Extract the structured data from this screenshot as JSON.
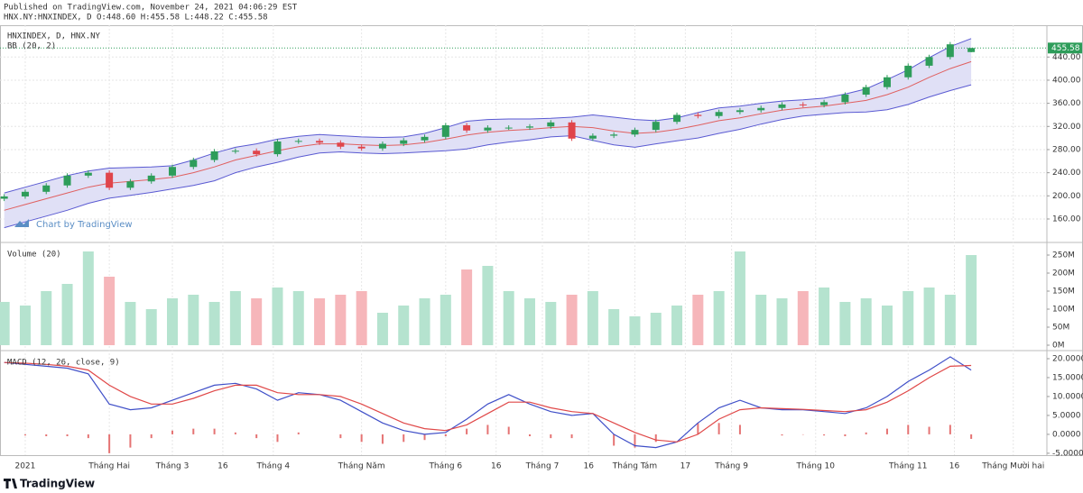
{
  "header": {
    "published": "Published on TradingView.com, November 24, 2021 04:06:29 EST",
    "symbol_line": "HNX.NY:HNXINDEX, D O:448.60 H:455.58 L:448.22 C:455.58"
  },
  "watermark": "Chart by TradingView",
  "footer": {
    "brand": "TradingView"
  },
  "chart_data": [
    {
      "type": "candlestick",
      "title": "HNXINDEX, D, HNX.NY",
      "indicator": "BB (20, 2)",
      "x": [
        0,
        5,
        10,
        15,
        20,
        25,
        30,
        35,
        40,
        45,
        50,
        55,
        60,
        65,
        70,
        75,
        80,
        85,
        90,
        95,
        100,
        105,
        110,
        115,
        120,
        125,
        130,
        135,
        140,
        145,
        150,
        155,
        160,
        165,
        170,
        175,
        180,
        185,
        190,
        195,
        200,
        205,
        210,
        215,
        220,
        225,
        230
      ],
      "xlim": [
        -1,
        248
      ],
      "xticks": [
        {
          "value": 5,
          "label": "2021"
        },
        {
          "value": 25,
          "label": "Tháng Hai"
        },
        {
          "value": 40,
          "label": "Tháng 3"
        },
        {
          "value": 52,
          "label": "16"
        },
        {
          "value": 64,
          "label": "Tháng 4"
        },
        {
          "value": 85,
          "label": "Tháng Năm"
        },
        {
          "value": 105,
          "label": "Tháng 6"
        },
        {
          "value": 117,
          "label": "16"
        },
        {
          "value": 128,
          "label": "Tháng 7"
        },
        {
          "value": 139,
          "label": "16"
        },
        {
          "value": 150,
          "label": "Tháng Tám"
        },
        {
          "value": 162,
          "label": "17"
        },
        {
          "value": 173,
          "label": "Tháng 9"
        },
        {
          "value": 193,
          "label": "Tháng 10"
        },
        {
          "value": 215,
          "label": "Tháng 11"
        },
        {
          "value": 226,
          "label": "16"
        },
        {
          "value": 240,
          "label": "Tháng Mười hai"
        }
      ],
      "open": [
        195,
        199,
        207,
        218,
        235,
        240,
        214,
        225,
        235,
        250,
        262,
        277,
        278,
        272,
        294,
        295,
        292,
        285,
        282,
        290,
        296,
        302,
        322,
        313,
        318,
        318,
        320,
        327,
        299,
        304,
        306,
        314,
        328,
        340,
        338,
        345,
        348,
        352,
        358,
        357,
        362,
        375,
        388,
        405,
        425,
        440,
        448.6
      ],
      "high": [
        203,
        211,
        222,
        239,
        244,
        244,
        229,
        239,
        254,
        266,
        281,
        282,
        282,
        298,
        299,
        299,
        296,
        289,
        294,
        300,
        306,
        326,
        326,
        322,
        322,
        324,
        331,
        331,
        308,
        310,
        318,
        332,
        344,
        344,
        349,
        352,
        356,
        362,
        362,
        366,
        379,
        392,
        409,
        429,
        444,
        466,
        455.58
      ],
      "low": [
        191,
        195,
        203,
        214,
        231,
        210,
        210,
        221,
        231,
        246,
        258,
        273,
        268,
        268,
        290,
        288,
        281,
        278,
        278,
        286,
        292,
        298,
        309,
        309,
        314,
        314,
        316,
        295,
        295,
        300,
        302,
        310,
        324,
        334,
        334,
        341,
        344,
        348,
        353,
        353,
        358,
        371,
        384,
        401,
        421,
        436,
        448.22
      ],
      "close": [
        199,
        207,
        218,
        235,
        240,
        214,
        225,
        235,
        250,
        262,
        277,
        278,
        272,
        294,
        295,
        292,
        285,
        282,
        290,
        296,
        302,
        322,
        313,
        318,
        318,
        320,
        327,
        299,
        304,
        306,
        314,
        328,
        340,
        338,
        345,
        348,
        352,
        358,
        357,
        362,
        375,
        388,
        405,
        425,
        440,
        462,
        455.58
      ],
      "up_color": "#2e9d5a",
      "down_color": "#e0454b",
      "bands": {
        "upper": [
          205,
          215,
          225,
          235,
          243,
          248,
          249,
          250,
          252,
          262,
          274,
          284,
          290,
          298,
          303,
          306,
          304,
          302,
          301,
          302,
          308,
          318,
          329,
          332,
          333,
          333,
          334,
          336,
          340,
          336,
          332,
          330,
          335,
          344,
          352,
          355,
          360,
          364,
          366,
          369,
          376,
          385,
          401,
          418,
          439,
          458,
          472
        ],
        "middle": [
          175,
          185,
          195,
          205,
          215,
          222,
          225,
          228,
          232,
          240,
          250,
          262,
          270,
          278,
          285,
          290,
          290,
          288,
          287,
          288,
          292,
          298,
          305,
          310,
          313,
          315,
          318,
          320,
          318,
          312,
          308,
          310,
          315,
          322,
          330,
          335,
          342,
          348,
          352,
          355,
          360,
          365,
          375,
          388,
          405,
          420,
          432
        ],
        "lower": [
          145,
          155,
          165,
          175,
          187,
          196,
          201,
          206,
          212,
          218,
          226,
          240,
          250,
          258,
          267,
          274,
          276,
          274,
          273,
          274,
          276,
          278,
          281,
          288,
          293,
          297,
          302,
          304,
          296,
          288,
          284,
          290,
          295,
          300,
          308,
          315,
          324,
          332,
          338,
          341,
          344,
          345,
          349,
          358,
          371,
          382,
          392
        ],
        "band_color": "#5a5ad2",
        "fill": "#e0e0f6",
        "middle_color": "#e06060"
      },
      "ylim": [
        121,
        495
      ],
      "yticks": [
        {
          "value": 160,
          "label": "160.00"
        },
        {
          "value": 200,
          "label": "200.00"
        },
        {
          "value": 240,
          "label": "240.00"
        },
        {
          "value": 280,
          "label": "280.00"
        },
        {
          "value": 320,
          "label": "320.00"
        },
        {
          "value": 360,
          "label": "360.00"
        },
        {
          "value": 400,
          "label": "400.00"
        },
        {
          "value": 440,
          "label": "440.00"
        }
      ],
      "grid": true
    },
    {
      "type": "bar",
      "title": "Volume (20)",
      "values": [
        120,
        110,
        150,
        170,
        260,
        190,
        120,
        100,
        130,
        140,
        120,
        150,
        130,
        160,
        150,
        130,
        140,
        150,
        90,
        110,
        130,
        140,
        210,
        220,
        150,
        130,
        120,
        140,
        150,
        100,
        80,
        90,
        110,
        140,
        150,
        260,
        140,
        130,
        150,
        160,
        120,
        130,
        110,
        150,
        160,
        140,
        250
      ],
      "up_color": "#b5e3cf",
      "down_color": "#f6b6ba",
      "ylim": [
        -12.5,
        282.5
      ],
      "yticks": [
        {
          "value": 0,
          "label": "0M"
        },
        {
          "value": 50,
          "label": "50M"
        },
        {
          "value": 100,
          "label": "100M"
        },
        {
          "value": 150,
          "label": "150M"
        },
        {
          "value": 200,
          "label": "200M"
        },
        {
          "value": 250,
          "label": "250M"
        }
      ]
    },
    {
      "type": "line",
      "title": "MACD (12, 26, close, 9)",
      "series": [
        {
          "color": "#3f4fc8",
          "values": [
            19,
            18.5,
            18,
            17.5,
            16,
            8,
            6.5,
            7,
            9,
            11,
            13,
            13.5,
            12,
            9,
            11,
            10.5,
            9,
            6,
            3,
            1,
            0,
            0.5,
            4,
            8,
            10.5,
            8,
            6,
            5,
            5.5,
            0,
            -3,
            -3.5,
            -2,
            3,
            7,
            9,
            7,
            6.5,
            6.5,
            6,
            5.5,
            7,
            10,
            14,
            17,
            20.5,
            17
          ]
        },
        {
          "color": "#e04848",
          "values": [
            19,
            18.8,
            18.5,
            18,
            17,
            13,
            10,
            8,
            8,
            9.5,
            11.5,
            13,
            13,
            11,
            10.5,
            10.5,
            10,
            8,
            5.5,
            3,
            1.5,
            1,
            2.5,
            5.5,
            8.5,
            8.5,
            7,
            6,
            5.5,
            3,
            0.5,
            -1.5,
            -2,
            0,
            4,
            6.5,
            7,
            6.8,
            6.6,
            6.3,
            6,
            6.5,
            8.5,
            11.5,
            15,
            18,
            18.2
          ]
        }
      ],
      "histogram": {
        "color": "#e57373",
        "values": [
          0,
          -0.3,
          -0.5,
          -0.5,
          -1,
          -5,
          -3.5,
          -1,
          1,
          1.5,
          1.5,
          0.5,
          -1,
          -2,
          0.5,
          0,
          -1,
          -2,
          -2.5,
          -2,
          -1.5,
          -0.5,
          1.5,
          2.5,
          2,
          -0.5,
          -1,
          -1,
          0,
          -3,
          -3.5,
          -2,
          0,
          3,
          3,
          2.5,
          0,
          -0.3,
          -0.1,
          -0.3,
          -0.5,
          0.5,
          1.5,
          2.5,
          2,
          2.5,
          -1.2
        ]
      },
      "ylim": [
        -5.5,
        21.9
      ],
      "yticks": [
        {
          "value": -5,
          "label": "-5.0000"
        },
        {
          "value": 0,
          "label": "0.0000"
        },
        {
          "value": 5,
          "label": "5.0000"
        },
        {
          "value": 10,
          "label": "10.0000"
        },
        {
          "value": 15,
          "label": "15.0000"
        },
        {
          "value": 20,
          "label": "20.0000"
        }
      ]
    }
  ]
}
